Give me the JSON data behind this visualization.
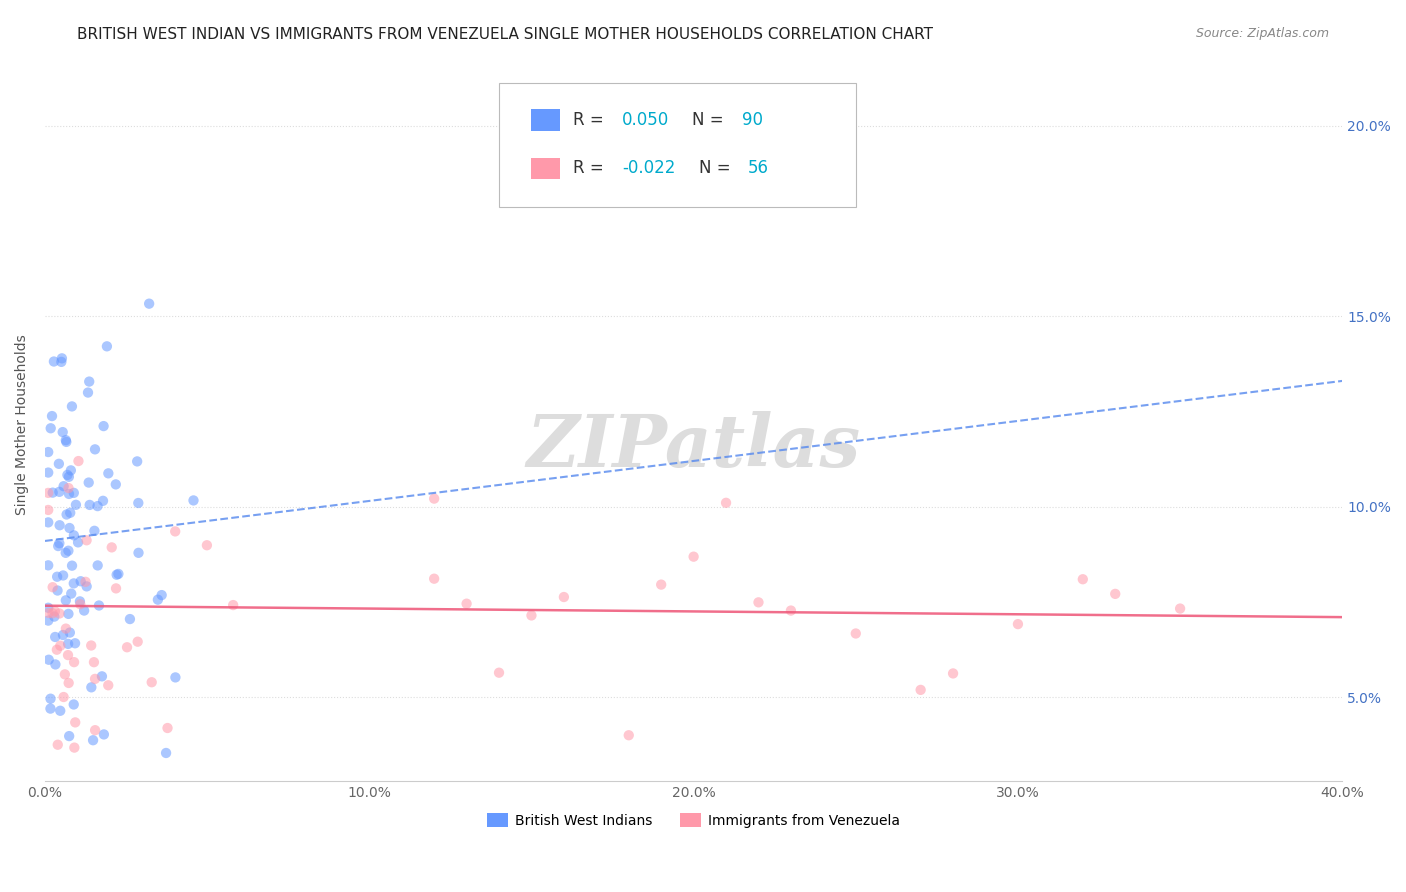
{
  "title": "BRITISH WEST INDIAN VS IMMIGRANTS FROM VENEZUELA SINGLE MOTHER HOUSEHOLDS CORRELATION CHART",
  "source": "Source: ZipAtlas.com",
  "ylabel": "Single Mother Households",
  "series1_color": "#6699ff",
  "series2_color": "#ff99aa",
  "series1_label": "British West Indians",
  "series2_label": "Immigrants from Venezuela",
  "trendline1_color": "#5588ee",
  "trendline2_color": "#ee5577",
  "trendline1_dash": "--",
  "trendline2_dash": "-",
  "watermark": "ZIPatlas",
  "watermark_color": "#dddddd",
  "background_color": "#ffffff",
  "grid_color": "#dddddd",
  "title_fontsize": 11,
  "axis_label_fontsize": 10,
  "tick_fontsize": 10,
  "right_tick_color": "#4472c4",
  "legend_color_r": "#00aacc",
  "legend_color_text": "#333333",
  "xlim": [
    0.0,
    0.4
  ],
  "ylim": [
    0.028,
    0.215
  ],
  "xtick_values": [
    0.0,
    0.1,
    0.2,
    0.3,
    0.4
  ],
  "xtick_labels": [
    "0.0%",
    "10.0%",
    "20.0%",
    "30.0%",
    "40.0%"
  ],
  "ytick_values": [
    0.05,
    0.1,
    0.15,
    0.2
  ],
  "ytick_labels": [
    "5.0%",
    "10.0%",
    "15.0%",
    "20.0%"
  ],
  "trendline1_x": [
    0.0,
    0.4
  ],
  "trendline1_y": [
    0.091,
    0.133
  ],
  "trendline2_x": [
    0.0,
    0.4
  ],
  "trendline2_y": [
    0.074,
    0.071
  ]
}
